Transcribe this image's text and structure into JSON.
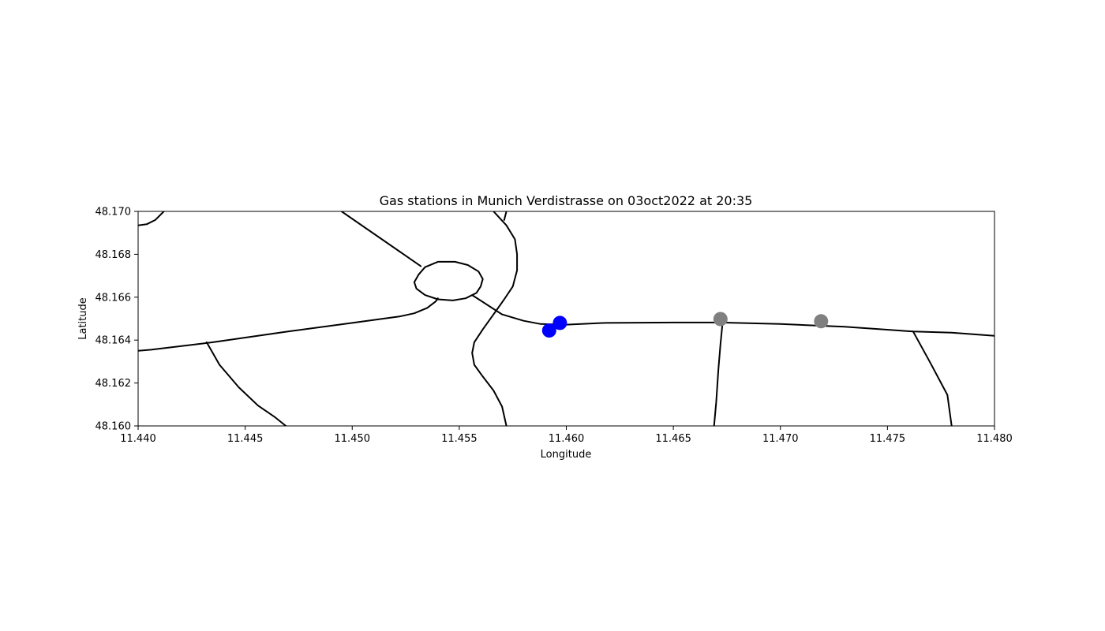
{
  "chart_data": {
    "type": "scatter",
    "title": "Gas stations in Munich Verdistrasse on 03oct2022 at 20:35",
    "xlabel": "Longitude",
    "ylabel": "Latitude",
    "xlim": [
      11.44,
      11.48
    ],
    "ylim": [
      48.16,
      48.17
    ],
    "x_ticks": [
      11.44,
      11.445,
      11.45,
      11.455,
      11.46,
      11.465,
      11.47,
      11.475,
      11.48
    ],
    "y_ticks": [
      48.16,
      48.162,
      48.164,
      48.166,
      48.168,
      48.17
    ],
    "x_tick_labels": [
      "11.440",
      "11.445",
      "11.450",
      "11.455",
      "11.460",
      "11.465",
      "11.470",
      "11.475",
      "11.480"
    ],
    "y_tick_labels": [
      "48.160",
      "48.162",
      "48.164",
      "48.166",
      "48.168",
      "48.170"
    ],
    "grid": false,
    "stations": [
      {
        "lon": 11.4592,
        "lat": 48.16445,
        "color": "#0000ff"
      },
      {
        "lon": 11.4597,
        "lat": 48.1648,
        "color": "#0000ff"
      },
      {
        "lon": 11.4672,
        "lat": 48.16498,
        "color": "#808080"
      },
      {
        "lon": 11.4719,
        "lat": 48.16488,
        "color": "#808080"
      }
    ],
    "roads": [
      [
        [
          11.44,
          48.16935
        ],
        [
          11.4404,
          48.1694
        ],
        [
          11.4408,
          48.1696
        ],
        [
          11.4412,
          48.17
        ]
      ],
      [
        [
          11.4495,
          48.17
        ],
        [
          11.4532,
          48.16745
        ]
      ],
      [
        [
          11.4566,
          48.17
        ],
        [
          11.4572,
          48.16935
        ],
        [
          11.4576,
          48.1687
        ],
        [
          11.4577,
          48.168
        ],
        [
          11.4577,
          48.16725
        ],
        [
          11.4575,
          48.1665
        ],
        [
          11.4571,
          48.1659
        ],
        [
          11.4566,
          48.1652
        ],
        [
          11.4561,
          48.1645
        ],
        [
          11.4557,
          48.1639
        ],
        [
          11.4556,
          48.1634
        ],
        [
          11.4557,
          48.16285
        ],
        [
          11.4561,
          48.1623
        ],
        [
          11.4566,
          48.16165
        ],
        [
          11.457,
          48.1609
        ],
        [
          11.4572,
          48.16
        ]
      ],
      [
        [
          11.4572,
          48.17
        ],
        [
          11.4571,
          48.1696
        ]
      ],
      [
        [
          11.4531,
          48.16705
        ],
        [
          11.4529,
          48.1667
        ],
        [
          11.453,
          48.1664
        ],
        [
          11.4534,
          48.1661
        ],
        [
          11.454,
          48.1659
        ],
        [
          11.4547,
          48.16585
        ],
        [
          11.4553,
          48.16595
        ],
        [
          11.4558,
          48.1662
        ],
        [
          11.456,
          48.1665
        ],
        [
          11.4561,
          48.16685
        ],
        [
          11.4559,
          48.1672
        ],
        [
          11.4554,
          48.1675
        ],
        [
          11.4548,
          48.16765
        ],
        [
          11.454,
          48.16765
        ],
        [
          11.4534,
          48.1674
        ],
        [
          11.4531,
          48.16705
        ]
      ],
      [
        [
          11.4556,
          48.1661
        ],
        [
          11.457,
          48.1652
        ],
        [
          11.458,
          48.1649
        ],
        [
          11.4588,
          48.16475
        ],
        [
          11.46,
          48.16472
        ],
        [
          11.4618,
          48.1648
        ],
        [
          11.465,
          48.16482
        ],
        [
          11.4672,
          48.16482
        ],
        [
          11.47,
          48.16475
        ],
        [
          11.473,
          48.16462
        ],
        [
          11.4762,
          48.1644
        ],
        [
          11.478,
          48.16435
        ],
        [
          11.48,
          48.1642
        ]
      ],
      [
        [
          11.44,
          48.1635
        ],
        [
          11.4406,
          48.16355
        ],
        [
          11.4435,
          48.1639
        ],
        [
          11.447,
          48.1644
        ],
        [
          11.45,
          48.1648
        ],
        [
          11.4522,
          48.1651
        ],
        [
          11.4529,
          48.16525
        ],
        [
          11.4535,
          48.1655
        ],
        [
          11.4539,
          48.1658
        ],
        [
          11.454,
          48.16595
        ]
      ],
      [
        [
          11.4432,
          48.1639
        ],
        [
          11.4438,
          48.16285
        ],
        [
          11.4447,
          48.1618
        ],
        [
          11.4456,
          48.16095
        ],
        [
          11.4464,
          48.1604
        ],
        [
          11.4469,
          48.16
        ]
      ],
      [
        [
          11.4673,
          48.16482
        ],
        [
          11.4672,
          48.1638
        ],
        [
          11.4671,
          48.1626
        ],
        [
          11.467,
          48.1611
        ],
        [
          11.4669,
          48.16
        ]
      ],
      [
        [
          11.4762,
          48.1644
        ],
        [
          11.477,
          48.16295
        ],
        [
          11.4778,
          48.16145
        ],
        [
          11.478,
          48.16
        ]
      ]
    ]
  }
}
